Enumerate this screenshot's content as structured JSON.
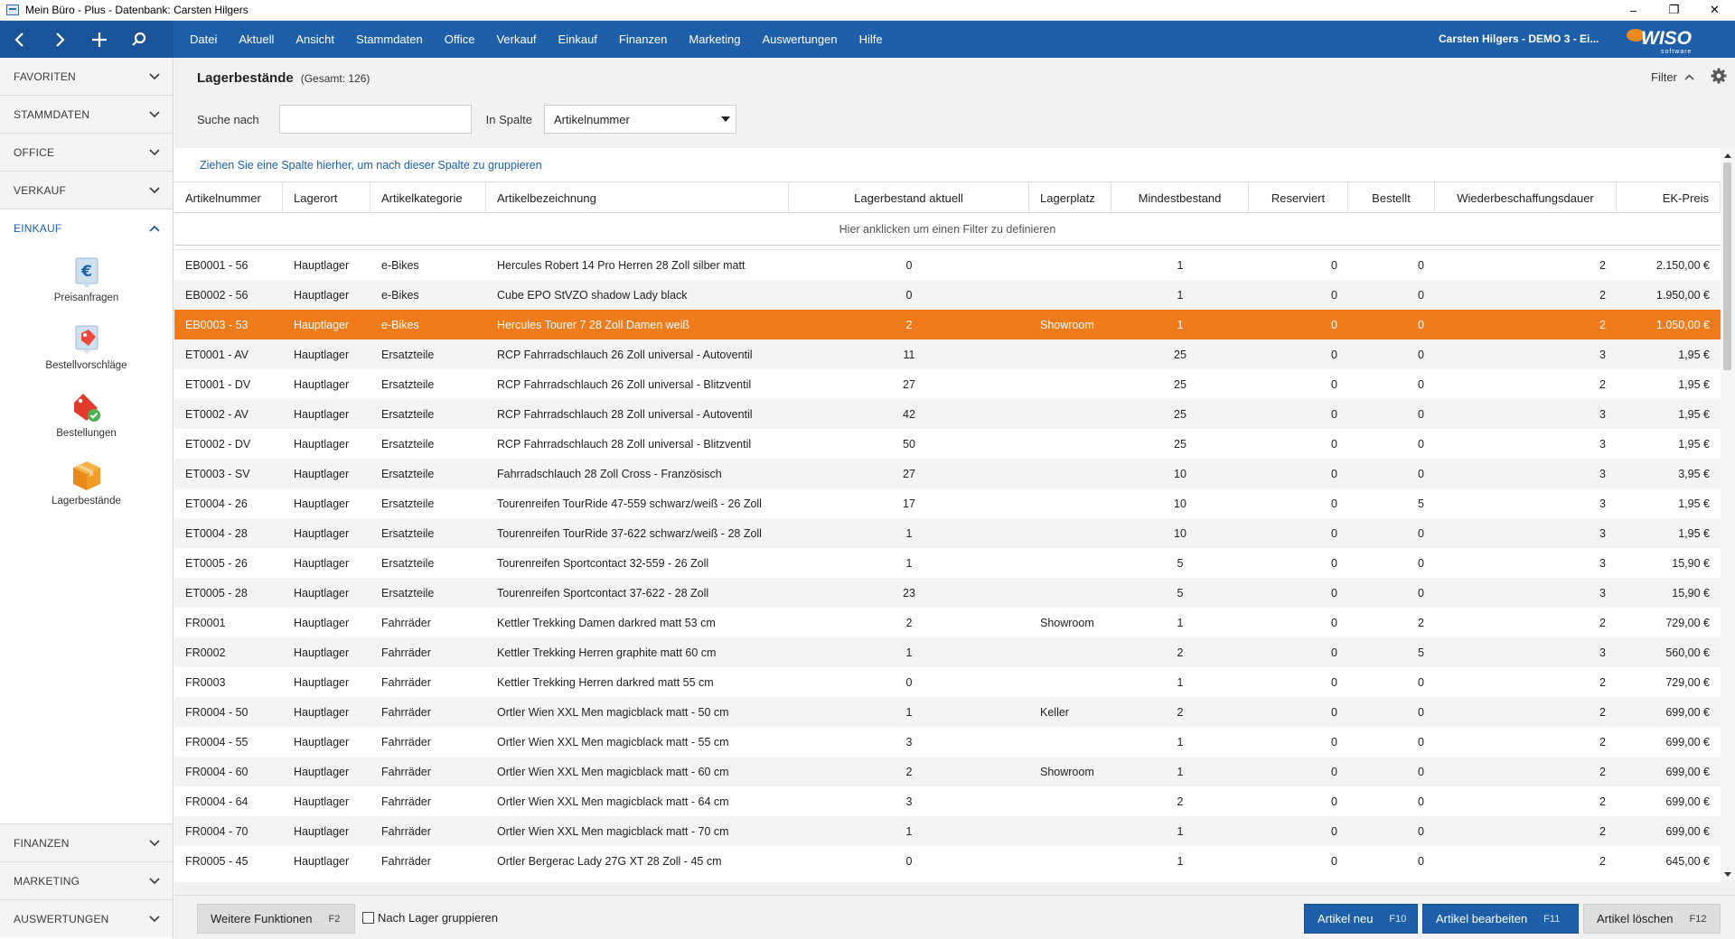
{
  "window": {
    "title": "Mein Büro - Plus - Datenbank: Carsten Hilgers"
  },
  "topbar": {
    "menu": [
      "Datei",
      "Aktuell",
      "Ansicht",
      "Stammdaten",
      "Office",
      "Verkauf",
      "Einkauf",
      "Finanzen",
      "Marketing",
      "Auswertungen",
      "Hilfe"
    ],
    "user": "Carsten Hilgers - DEMO 3 - Ei...",
    "logo": "WISO",
    "logo_sub": "software"
  },
  "sidebar": {
    "sections_top": [
      "FAVORITEN",
      "STAMMDATEN",
      "OFFICE",
      "VERKAUF"
    ],
    "active_section": "EINKAUF",
    "tools": [
      {
        "label": "Preisanfragen",
        "icon": "euro-document-icon"
      },
      {
        "label": "Bestellvorschläge",
        "icon": "price-tag-icon"
      },
      {
        "label": "Bestellungen",
        "icon": "tag-check-icon"
      },
      {
        "label": "Lagerbestände",
        "icon": "box-icon"
      }
    ],
    "sections_bottom": [
      "FINANZEN",
      "MARKETING",
      "AUSWERTUNGEN"
    ]
  },
  "main": {
    "title": "Lagerbestände",
    "total": "(Gesamt: 126)",
    "filter_label": "Filter",
    "search_label": "Suche nach",
    "search_value": "",
    "column_label": "In Spalte",
    "column_selected": "Artikelnummer",
    "group_hint": "Ziehen Sie eine Spalte hierher, um nach dieser Spalte zu gruppieren",
    "filter_row_hint": "Hier anklicken um einen Filter zu definieren"
  },
  "table": {
    "columns": [
      "Artikelnummer",
      "Lagerort",
      "Artikelkategorie",
      "Artikelbezeichnung",
      "Lagerbestand aktuell",
      "Lagerplatz",
      "Mindestbestand",
      "Reserviert",
      "Bestellt",
      "Wiederbeschaffungsdauer",
      "EK-Preis"
    ],
    "selected_row": 2,
    "rows": [
      [
        "EB0001 - 56",
        "Hauptlager",
        "e-Bikes",
        "Hercules Robert 14 Pro Herren 28 Zoll silber matt",
        "0",
        "",
        "1",
        "0",
        "0",
        "2",
        "2.150,00 €"
      ],
      [
        "EB0002 - 56",
        "Hauptlager",
        "e-Bikes",
        "Cube EPO StVZO shadow Lady black",
        "0",
        "",
        "1",
        "0",
        "0",
        "2",
        "1.950,00 €"
      ],
      [
        "EB0003 - 53",
        "Hauptlager",
        "e-Bikes",
        "Hercules Tourer 7 28 Zoll Damen weiß",
        "2",
        "Showroom",
        "1",
        "0",
        "0",
        "2",
        "1.050,00 €"
      ],
      [
        "ET0001 - AV",
        "Hauptlager",
        "Ersatzteile",
        "RCP Fahrradschlauch 26 Zoll universal - Autoventil",
        "11",
        "",
        "25",
        "0",
        "0",
        "3",
        "1,95 €"
      ],
      [
        "ET0001 - DV",
        "Hauptlager",
        "Ersatzteile",
        "RCP Fahrradschlauch 26 Zoll universal - Blitzventil",
        "27",
        "",
        "25",
        "0",
        "0",
        "2",
        "1,95 €"
      ],
      [
        "ET0002 - AV",
        "Hauptlager",
        "Ersatzteile",
        "RCP Fahrradschlauch 28 Zoll universal - Autoventil",
        "42",
        "",
        "25",
        "0",
        "0",
        "3",
        "1,95 €"
      ],
      [
        "ET0002 - DV",
        "Hauptlager",
        "Ersatzteile",
        "RCP Fahrradschlauch 28 Zoll universal - Blitzventil",
        "50",
        "",
        "25",
        "0",
        "0",
        "3",
        "1,95 €"
      ],
      [
        "ET0003 - SV",
        "Hauptlager",
        "Ersatzteile",
        "Fahrradschlauch 28 Zoll Cross - Französisch",
        "27",
        "",
        "10",
        "0",
        "0",
        "3",
        "3,95 €"
      ],
      [
        "ET0004 - 26",
        "Hauptlager",
        "Ersatzteile",
        "Tourenreifen TourRide 47-559 schwarz/weiß - 26 Zoll",
        "17",
        "",
        "10",
        "0",
        "5",
        "3",
        "1,95 €"
      ],
      [
        "ET0004 - 28",
        "Hauptlager",
        "Ersatzteile",
        "Tourenreifen TourRide 37-622 schwarz/weiß - 28 Zoll",
        "1",
        "",
        "10",
        "0",
        "0",
        "3",
        "1,95 €"
      ],
      [
        "ET0005 - 26",
        "Hauptlager",
        "Ersatzteile",
        "Tourenreifen Sportcontact 32-559  - 26 Zoll",
        "1",
        "",
        "5",
        "0",
        "0",
        "3",
        "15,90 €"
      ],
      [
        "ET0005 - 28",
        "Hauptlager",
        "Ersatzteile",
        "Tourenreifen Sportcontact 37-622  - 28 Zoll",
        "23",
        "",
        "5",
        "0",
        "0",
        "3",
        "15,90 €"
      ],
      [
        "FR0001",
        "Hauptlager",
        "Fahrräder",
        "Kettler Trekking  Damen darkred matt 53 cm",
        "2",
        "Showroom",
        "1",
        "0",
        "2",
        "2",
        "729,00 €"
      ],
      [
        "FR0002",
        "Hauptlager",
        "Fahrräder",
        "Kettler Trekking  Herren graphite matt 60 cm",
        "1",
        "",
        "2",
        "0",
        "5",
        "3",
        "560,00 €"
      ],
      [
        "FR0003",
        "Hauptlager",
        "Fahrräder",
        "Kettler Trekking  Herren darkred matt 55 cm",
        "0",
        "",
        "1",
        "0",
        "0",
        "2",
        "729,00 €"
      ],
      [
        "FR0004 - 50",
        "Hauptlager",
        "Fahrräder",
        "Ortler Wien XXL Men magicblack matt - 50 cm",
        "1",
        "Keller",
        "2",
        "0",
        "0",
        "2",
        "699,00 €"
      ],
      [
        "FR0004 - 55",
        "Hauptlager",
        "Fahrräder",
        "Ortler Wien XXL Men magicblack matt - 55 cm",
        "3",
        "",
        "1",
        "0",
        "0",
        "2",
        "699,00 €"
      ],
      [
        "FR0004 - 60",
        "Hauptlager",
        "Fahrräder",
        "Ortler Wien XXL Men magicblack matt - 60 cm",
        "2",
        "Showroom",
        "1",
        "0",
        "0",
        "2",
        "699,00 €"
      ],
      [
        "FR0004 - 64",
        "Hauptlager",
        "Fahrräder",
        "Ortler Wien XXL Men magicblack matt - 64 cm",
        "3",
        "",
        "2",
        "0",
        "0",
        "2",
        "699,00 €"
      ],
      [
        "FR0004 - 70",
        "Hauptlager",
        "Fahrräder",
        "Ortler Wien XXL Men magicblack matt - 70 cm",
        "1",
        "",
        "1",
        "0",
        "0",
        "2",
        "699,00 €"
      ],
      [
        "FR0005 - 45",
        "Hauptlager",
        "Fahrräder",
        "Ortler Bergerac Lady 27G XT 28 Zoll - 45 cm",
        "0",
        "",
        "1",
        "0",
        "0",
        "2",
        "645,00 €"
      ]
    ]
  },
  "footer": {
    "more_label": "Weitere Funktionen",
    "more_key": "F2",
    "group_checkbox": "Nach Lager gruppieren",
    "new_label": "Artikel neu",
    "new_key": "F10",
    "edit_label": "Artikel bearbeiten",
    "edit_key": "F11",
    "delete_label": "Artikel löschen",
    "delete_key": "F12"
  },
  "colors": {
    "brand_blue": "#1d5fa9",
    "selection_orange": "#ef7b1b"
  }
}
